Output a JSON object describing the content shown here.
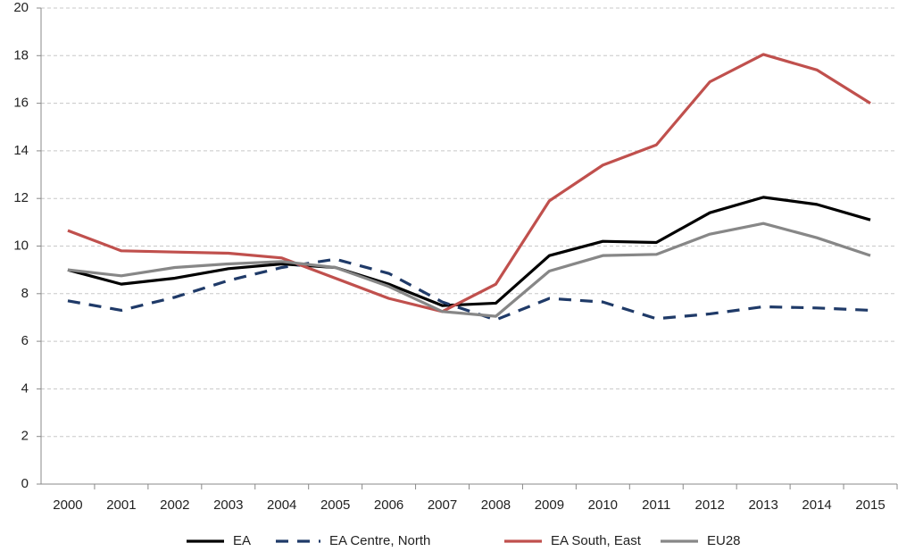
{
  "chart_data": {
    "type": "line",
    "categories": [
      "2000",
      "2001",
      "2002",
      "2003",
      "2004",
      "2005",
      "2006",
      "2007",
      "2008",
      "2009",
      "2010",
      "2011",
      "2012",
      "2013",
      "2014",
      "2015"
    ],
    "series": [
      {
        "name": "EA",
        "color": "#000000",
        "line_style": "solid",
        "values": [
          9.0,
          8.4,
          8.65,
          9.05,
          9.25,
          9.1,
          8.4,
          7.5,
          7.6,
          9.6,
          10.2,
          10.15,
          11.4,
          12.05,
          11.75,
          11.1
        ]
      },
      {
        "name": "EA Centre, North",
        "color": "#1f3a68",
        "line_style": "dashed",
        "values": [
          7.7,
          7.3,
          7.85,
          8.55,
          9.1,
          9.45,
          8.85,
          7.65,
          6.9,
          7.8,
          7.65,
          6.95,
          7.15,
          7.45,
          7.4,
          7.3
        ]
      },
      {
        "name": "EA South, East",
        "color": "#c0504d",
        "line_style": "solid",
        "values": [
          10.65,
          9.8,
          9.75,
          9.7,
          9.5,
          8.65,
          7.8,
          7.25,
          8.4,
          11.9,
          13.4,
          14.25,
          16.9,
          18.05,
          17.4,
          16.0
        ]
      },
      {
        "name": "EU28",
        "color": "#878787",
        "line_style": "solid",
        "values": [
          9.0,
          8.75,
          9.1,
          9.25,
          9.35,
          9.1,
          8.3,
          7.25,
          7.05,
          8.95,
          9.6,
          9.65,
          10.5,
          10.95,
          10.35,
          9.6
        ]
      }
    ],
    "ylim": [
      0,
      20
    ],
    "yticks": [
      0,
      2,
      4,
      6,
      8,
      10,
      12,
      14,
      16,
      18,
      20
    ],
    "grid": true,
    "legend": "bottom"
  }
}
